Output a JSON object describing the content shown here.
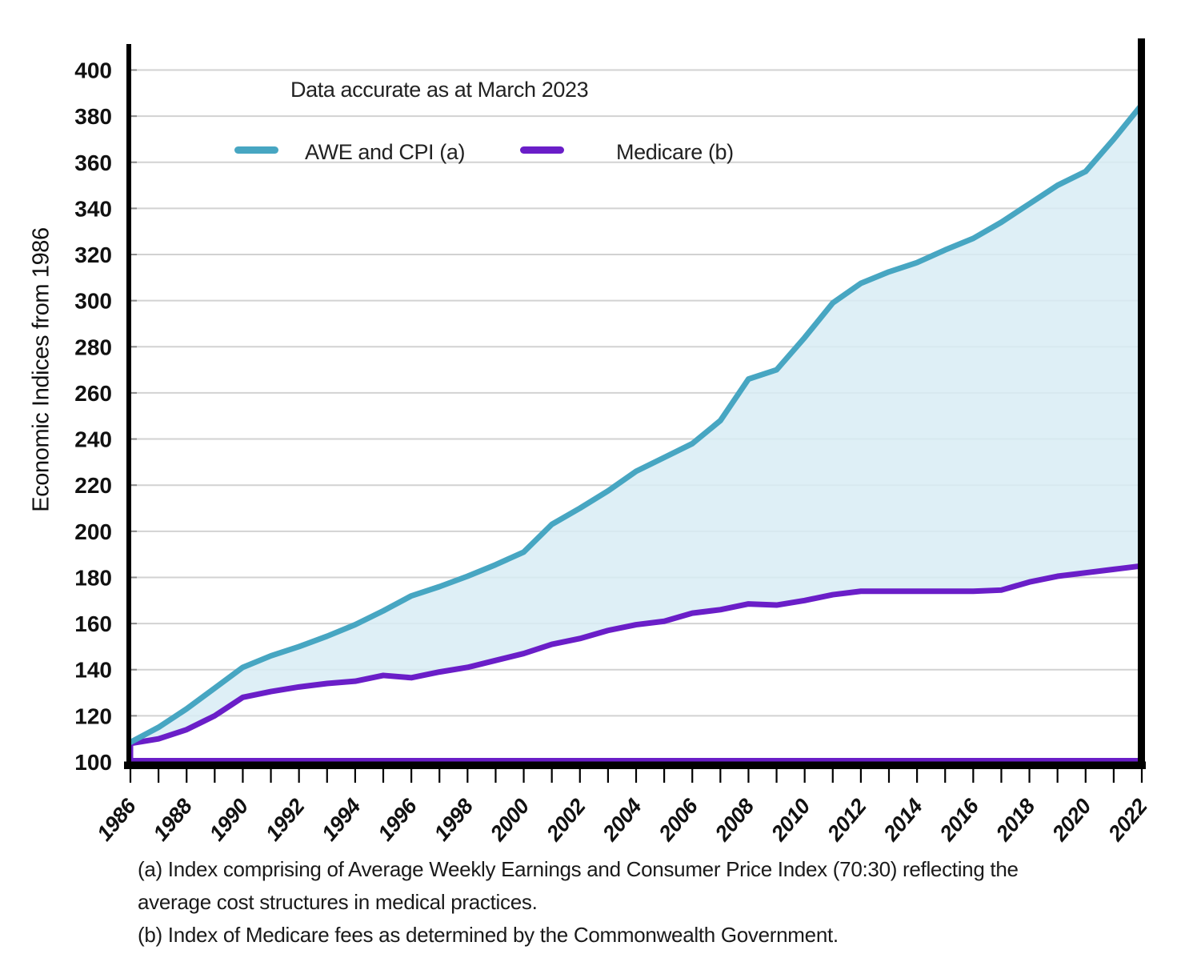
{
  "chart_data": {
    "type": "area",
    "note": "Data accurate as at March 2023",
    "ylabel": "Economic Indices from 1986",
    "ylim": [
      100,
      400
    ],
    "ytick_step": 20,
    "xlim": [
      1986,
      2022
    ],
    "xtick_label_step": 2,
    "grid": true,
    "legend_position": "top-left-inside",
    "fill_between_color": "#D8ECF5",
    "x": [
      1986,
      1987,
      1988,
      1989,
      1990,
      1991,
      1992,
      1993,
      1994,
      1995,
      1996,
      1997,
      1998,
      1999,
      2000,
      2001,
      2002,
      2003,
      2004,
      2005,
      2006,
      2007,
      2008,
      2009,
      2010,
      2011,
      2012,
      2013,
      2014,
      2015,
      2016,
      2017,
      2018,
      2019,
      2020,
      2021,
      2022
    ],
    "series": [
      {
        "name": "AWE and CPI (a)",
        "color": "#47A6C2",
        "values": [
          108.5,
          115,
          123,
          132,
          141,
          146,
          150,
          154.5,
          159.5,
          165.5,
          172,
          176,
          180.5,
          185.5,
          191,
          203,
          210,
          217.5,
          226,
          232,
          238,
          248,
          266,
          270,
          284,
          299,
          307.5,
          312.5,
          316.5,
          322,
          327,
          334,
          342,
          350,
          356,
          370,
          385
        ]
      },
      {
        "name": "Medicare (b)",
        "color": "#6A1EC8",
        "values": [
          108,
          110,
          114,
          120,
          128,
          130.5,
          132.5,
          134,
          135,
          137.5,
          136.5,
          139,
          141,
          144,
          147,
          151,
          153.5,
          157,
          159.5,
          161,
          164.5,
          166,
          168.5,
          168,
          170,
          172.5,
          174,
          174,
          174,
          174,
          174,
          174.5,
          178,
          180.5,
          182,
          183.5,
          185
        ]
      }
    ]
  },
  "colors": {
    "grid": "#D2D2D2",
    "axis": "#000000",
    "tick_label": "#111111"
  },
  "footnotes": [
    "(a) Index comprising of Average Weekly Earnings and Consumer Price Index (70:30) reflecting the",
    "average cost structures in medical practices.",
    "(b) Index of Medicare fees as determined by the Commonwealth Government."
  ]
}
